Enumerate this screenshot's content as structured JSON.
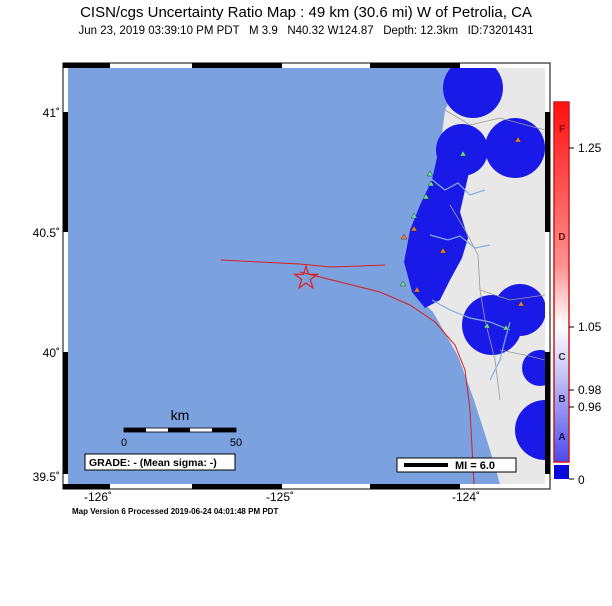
{
  "header": {
    "title": "CISN/cgs Uncertainty Ratio Map : 49 km (30.6 mi) W of Petrolia, CA",
    "subtitle": "Jun 23, 2019 03:39:10 PM PDT   M 3.9   N40.32 W124.87   Depth: 12.3km   ID:73201431"
  },
  "map": {
    "lon_labels": [
      "-126˚",
      "-125˚",
      "-124˚"
    ],
    "lat_labels": [
      "41˚",
      "40.5˚",
      "40˚",
      "39.5˚"
    ],
    "colors": {
      "ocean": "#7ba1de",
      "land": "#e8e8e8",
      "coverage": "#1a1ae8",
      "fault": "#d42020",
      "river": "#7faee8",
      "station_triangle_green": "#5ee0a0",
      "station_triangle_orange": "#f07a30"
    },
    "scale_bar": {
      "title": "km",
      "start": "0",
      "end": "50"
    },
    "grade_label": "GRADE: - (Mean sigma: -)",
    "mmi_legend": "MI = 6.0"
  },
  "colorbar": {
    "letters": [
      "F",
      "D",
      "C",
      "B",
      "A"
    ],
    "tick_labels": [
      "1.25",
      "1.05",
      "0.98",
      "0.96",
      "0"
    ]
  },
  "footer": {
    "text": "Map Version 6 Processed 2019-06-24 04:01:48 PM PDT"
  }
}
